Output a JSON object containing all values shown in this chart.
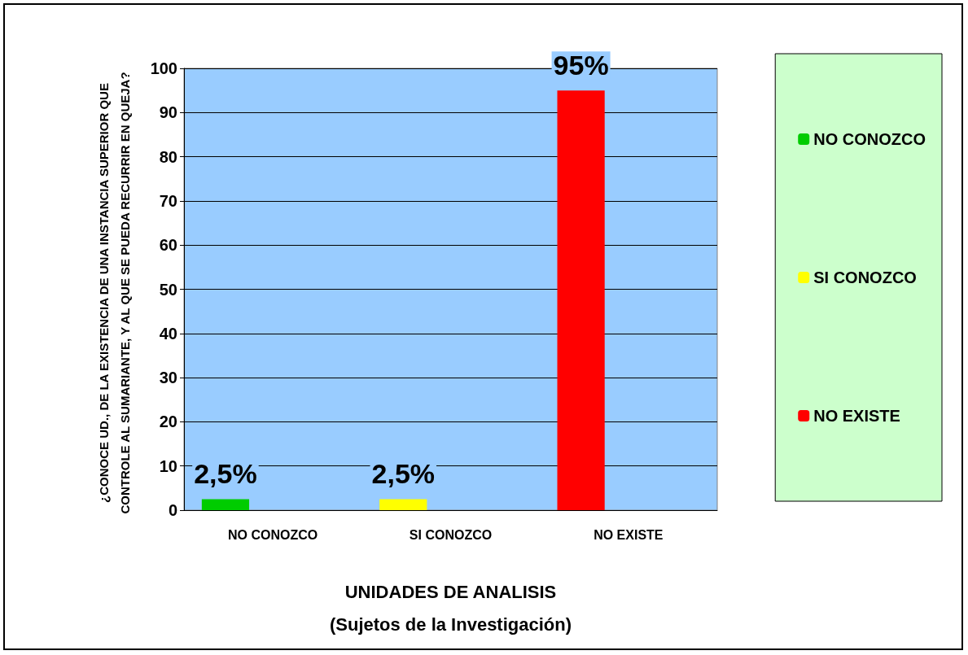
{
  "chart_data": {
    "type": "bar",
    "ylabel": "¿CONOCE UD., DE LA EXISTENCIA DE UNA INSTANCIA SUPERIOR QUE CONTROLE AL SUMARIANTE, Y AL QUE SE PUEDA RECURRIR EN QUEJA?",
    "xlabel": "UNIDADES DE ANALISIS\n(Sujetos de la Investigación)",
    "categories": [
      "NO CONOZCO",
      "SI CONOZCO",
      "NO EXISTE"
    ],
    "series": [
      {
        "name": "NO CONOZCO",
        "color": "#00cc00",
        "colors": [
          "#00cc00",
          "#ffff00",
          "#ff0000"
        ],
        "values": [
          2.5,
          2.5,
          95
        ],
        "value_labels": [
          "2,5%",
          "2,5%",
          "95%"
        ]
      },
      {
        "name": "SI CONOZCO",
        "color": "#ffff00",
        "values": [
          0,
          0,
          0
        ]
      },
      {
        "name": "NO EXISTE",
        "color": "#ff0000",
        "values": [
          0,
          0,
          0
        ]
      }
    ],
    "ylim": [
      0,
      100
    ],
    "yticks": [
      0,
      10,
      20,
      30,
      40,
      50,
      60,
      70,
      80,
      90,
      100
    ],
    "grid": "y",
    "legend": "right"
  }
}
